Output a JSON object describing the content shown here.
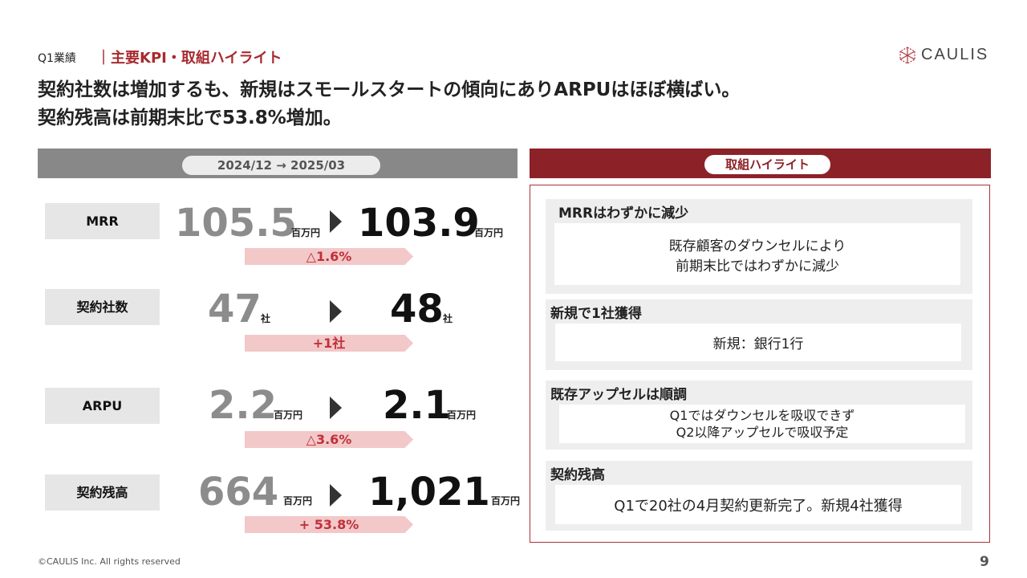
{
  "header": {
    "section": "Q1業績",
    "subtitle": "｜主要KPI・取組ハイライト",
    "logo_text": "CAULIS"
  },
  "headline": {
    "line1": "契約社数は増加するも、新規はスモールスタートの傾向にありARPUはほぼ横ばい。",
    "line2": "契約残高は前期末比で53.8%増加。"
  },
  "period": "2024/12 → 2025/03",
  "kpis": [
    {
      "label": "MRR",
      "before": "105.5",
      "before_unit": "百万円",
      "after": "103.9",
      "after_unit": "百万円",
      "delta": "△1.6%"
    },
    {
      "label": "契約社数",
      "before": "47",
      "before_unit": "社",
      "after": "48",
      "after_unit": "社",
      "delta": "+1社"
    },
    {
      "label": "ARPU",
      "before": "2.2",
      "before_unit": "百万円",
      "after": "2.1",
      "after_unit": "百万円",
      "delta": "△3.6%"
    },
    {
      "label": "契約残高",
      "before": "664",
      "before_unit": "百万円",
      "after": "1,021",
      "after_unit": "百万円",
      "delta": "+ 53.8%"
    }
  ],
  "highlights": {
    "header": "取組ハイライト",
    "items": [
      {
        "title": "MRRはわずかに減少",
        "line1": "既存顧客のダウンセルにより",
        "line2": "前期末比ではわずかに減少"
      },
      {
        "title": "新規で1社獲得",
        "line1": "新規：銀行1行",
        "line2": ""
      },
      {
        "title": "既存アップセルは順調",
        "line1": "Q1ではダウンセルを吸収できず",
        "line2": "Q2以降アップセルで吸収予定"
      },
      {
        "title": "契約残高",
        "line1": "Q1で20社の4月契約更新完了。新規4社獲得",
        "line2": ""
      }
    ]
  },
  "footer": {
    "copyright": "©CAULIS Inc. All rights reserved",
    "page": "9"
  },
  "colors": {
    "brand_red": "#8c2228",
    "accent_red": "#a82a2e",
    "delta_fill": "#f2c8c8",
    "gray_bar": "#888888"
  }
}
